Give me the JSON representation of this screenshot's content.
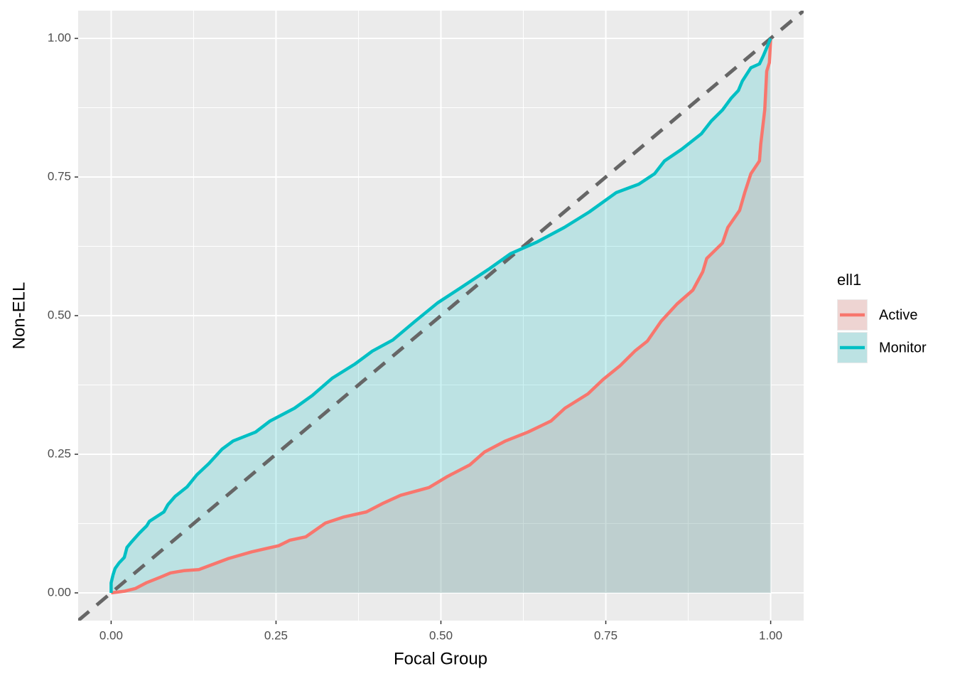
{
  "chart_data": {
    "type": "area-line",
    "x_label": "Focal Group",
    "y_label": "Non-ELL",
    "legend_title": "ell1",
    "legend_position": "right",
    "xlim": [
      -0.05,
      1.05
    ],
    "ylim": [
      -0.05,
      1.05
    ],
    "xticks": [
      {
        "value": 0,
        "label": "0.00"
      },
      {
        "value": 0.25,
        "label": "0.25"
      },
      {
        "value": 0.5,
        "label": "0.50"
      },
      {
        "value": 0.75,
        "label": "0.75"
      },
      {
        "value": 1,
        "label": "1.00"
      }
    ],
    "yticks": [
      {
        "value": 0,
        "label": "0.00"
      },
      {
        "value": 0.25,
        "label": "0.25"
      },
      {
        "value": 0.5,
        "label": "0.50"
      },
      {
        "value": 0.75,
        "label": "0.75"
      },
      {
        "value": 1,
        "label": "1.00"
      }
    ],
    "grid": true,
    "minor_grid": true,
    "diagonal": true,
    "series": [
      {
        "name": "Active",
        "color": "#F8766D",
        "x": [
          0,
          0.02,
          0.037,
          0.053,
          0.074,
          0.09,
          0.11,
          0.133,
          0.151,
          0.178,
          0.213,
          0.254,
          0.271,
          0.295,
          0.325,
          0.353,
          0.387,
          0.413,
          0.439,
          0.482,
          0.51,
          0.544,
          0.566,
          0.598,
          0.632,
          0.667,
          0.688,
          0.723,
          0.746,
          0.772,
          0.794,
          0.813,
          0.834,
          0.858,
          0.882,
          0.897,
          0.903,
          0.927,
          0.935,
          0.953,
          0.961,
          0.97,
          0.983,
          0.985,
          0.991,
          0.994,
          0.998,
          1
        ],
        "values": [
          0,
          0.003,
          0.008,
          0.018,
          0.028,
          0.036,
          0.04,
          0.042,
          0.05,
          0.062,
          0.074,
          0.085,
          0.095,
          0.101,
          0.126,
          0.137,
          0.146,
          0.162,
          0.176,
          0.19,
          0.21,
          0.231,
          0.254,
          0.274,
          0.29,
          0.31,
          0.333,
          0.359,
          0.385,
          0.41,
          0.436,
          0.454,
          0.49,
          0.521,
          0.546,
          0.579,
          0.603,
          0.631,
          0.659,
          0.69,
          0.723,
          0.756,
          0.779,
          0.81,
          0.871,
          0.941,
          0.956,
          1
        ]
      },
      {
        "name": "Monitor",
        "color": "#00BFC4",
        "x": [
          0,
          0,
          0.003,
          0.006,
          0.012,
          0.02,
          0.024,
          0.031,
          0.043,
          0.054,
          0.058,
          0.08,
          0.086,
          0.097,
          0.115,
          0.13,
          0.148,
          0.168,
          0.185,
          0.219,
          0.241,
          0.278,
          0.305,
          0.335,
          0.37,
          0.396,
          0.427,
          0.461,
          0.495,
          0.531,
          0.574,
          0.606,
          0.646,
          0.687,
          0.725,
          0.766,
          0.8,
          0.824,
          0.839,
          0.865,
          0.895,
          0.91,
          0.927,
          0.94,
          0.951,
          0.957,
          0.97,
          0.983,
          0.989,
          1
        ],
        "values": [
          0,
          0.018,
          0.033,
          0.044,
          0.054,
          0.064,
          0.082,
          0.092,
          0.108,
          0.121,
          0.129,
          0.146,
          0.159,
          0.174,
          0.191,
          0.213,
          0.233,
          0.259,
          0.274,
          0.29,
          0.31,
          0.333,
          0.356,
          0.387,
          0.413,
          0.436,
          0.456,
          0.49,
          0.523,
          0.551,
          0.585,
          0.612,
          0.633,
          0.659,
          0.687,
          0.722,
          0.737,
          0.756,
          0.779,
          0.8,
          0.828,
          0.851,
          0.871,
          0.892,
          0.906,
          0.923,
          0.947,
          0.954,
          0.969,
          1
        ]
      }
    ]
  }
}
